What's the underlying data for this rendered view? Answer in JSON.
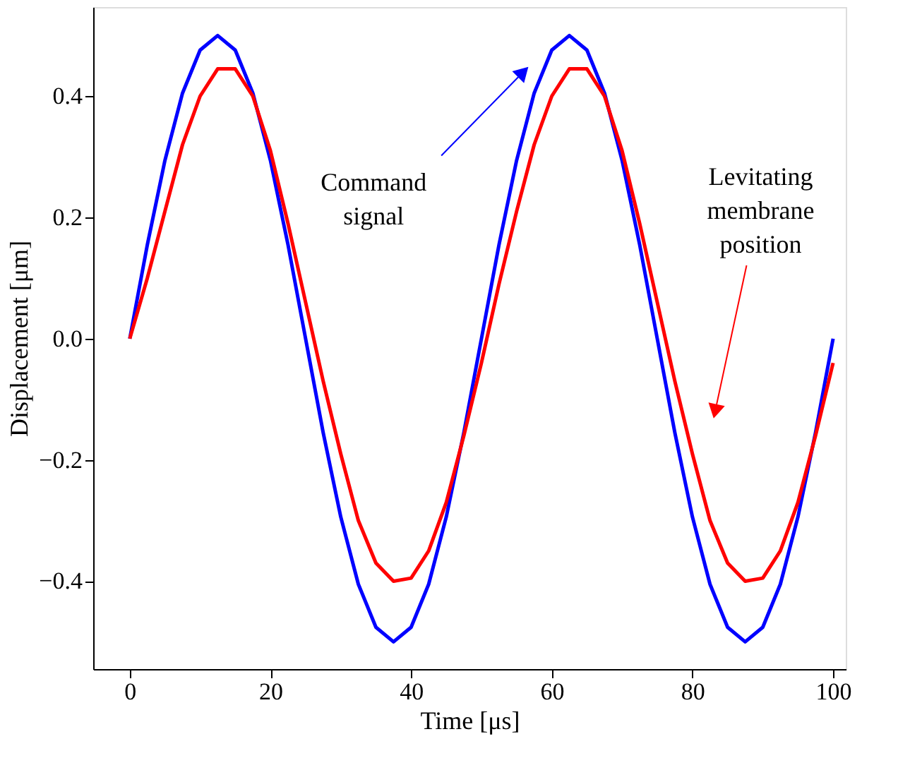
{
  "chart_data": {
    "type": "line",
    "xlabel": "Time [μs]",
    "ylabel": "Displacement [μm]",
    "x": [
      0,
      2.5,
      5,
      7.5,
      10,
      12.5,
      15,
      17.5,
      20,
      22.5,
      25,
      27.5,
      30,
      32.5,
      35,
      37.5,
      40,
      42.5,
      45,
      47.5,
      50,
      52.5,
      55,
      57.5,
      60,
      62.5,
      65,
      67.5,
      70,
      72.5,
      75,
      77.5,
      80,
      82.5,
      85,
      87.5,
      90,
      92.5,
      95,
      97.5,
      100
    ],
    "series": [
      {
        "color": "#0000ff",
        "values": [
          0,
          0.155,
          0.294,
          0.405,
          0.476,
          0.5,
          0.476,
          0.405,
          0.294,
          0.155,
          0,
          -0.155,
          -0.294,
          -0.405,
          -0.476,
          -0.5,
          -0.476,
          -0.405,
          -0.294,
          -0.155,
          0,
          0.155,
          0.294,
          0.405,
          0.476,
          0.5,
          0.476,
          0.405,
          0.294,
          0.155,
          0,
          -0.155,
          -0.294,
          -0.405,
          -0.476,
          -0.5,
          -0.476,
          -0.405,
          -0.294,
          -0.155,
          0
        ]
      },
      {
        "color": "#ff0000",
        "values": [
          0,
          0.1,
          0.21,
          0.32,
          0.4,
          0.445,
          0.445,
          0.4,
          0.31,
          0.19,
          0.06,
          -0.07,
          -0.19,
          -0.3,
          -0.37,
          -0.4,
          -0.395,
          -0.35,
          -0.27,
          -0.16,
          -0.04,
          0.09,
          0.21,
          0.32,
          0.4,
          0.445,
          0.445,
          0.4,
          0.31,
          0.19,
          0.06,
          -0.07,
          -0.19,
          -0.3,
          -0.37,
          -0.4,
          -0.395,
          -0.35,
          -0.27,
          -0.16,
          -0.04
        ]
      }
    ],
    "annotations": [
      {
        "text": "Command signal",
        "x": 55.7,
        "y": 0.437
      },
      {
        "text": "Levitating membrane position",
        "x": 83.3,
        "y": -0.116
      }
    ],
    "xlim": [
      -5.2,
      101.8
    ],
    "ylim": [
      -0.545,
      0.547
    ],
    "xticks": [
      0,
      20,
      40,
      60,
      80,
      100
    ],
    "yticks": [
      {
        "value": -0.4,
        "label": "−0.4"
      },
      {
        "value": -0.2,
        "label": "−0.2"
      },
      {
        "value": 0,
        "label": "0.0"
      },
      {
        "value": 0.2,
        "label": "0.2"
      },
      {
        "value": 0.4,
        "label": "0.4"
      }
    ],
    "grid": false,
    "marker": "none",
    "line_style": "solid"
  }
}
